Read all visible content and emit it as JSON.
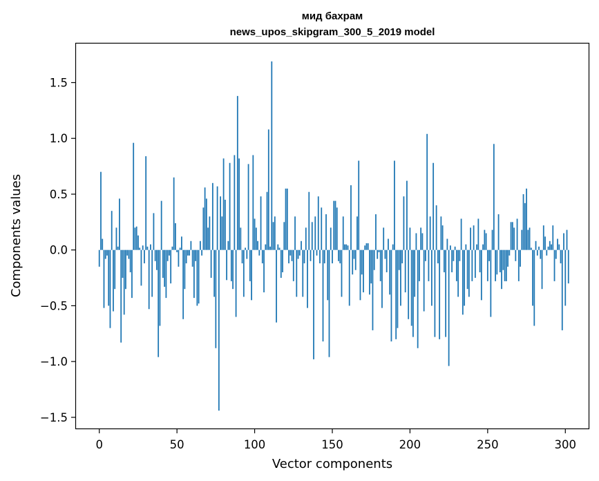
{
  "chart_data": {
    "type": "bar",
    "title_line1": "мид бахрам",
    "title_line2": "news_upos_skipgram_300_5_2019 model",
    "xlabel": "Vector components",
    "ylabel": "Components values",
    "xlim": [
      -15,
      315
    ],
    "ylim": [
      -1.6,
      1.85
    ],
    "xticks": [
      0,
      50,
      100,
      150,
      200,
      250,
      300
    ],
    "xtick_labels": [
      "0",
      "50",
      "100",
      "150",
      "200",
      "250",
      "300"
    ],
    "yticks": [
      -1.5,
      -1.0,
      -0.5,
      0.0,
      0.5,
      1.0,
      1.5
    ],
    "ytick_labels": [
      "−1.5",
      "−1.0",
      "−0.5",
      "0.0",
      "0.5",
      "1.0",
      "1.5"
    ],
    "bar_color": "#1f77b4",
    "grid": false,
    "values": [
      -0.15,
      0.7,
      0.1,
      -0.52,
      -0.08,
      -0.05,
      -0.5,
      -0.7,
      0.35,
      -0.55,
      -0.35,
      0.2,
      0.03,
      0.46,
      -0.83,
      -0.25,
      -0.58,
      -0.35,
      -0.05,
      -0.08,
      -0.2,
      -0.43,
      0.96,
      0.2,
      0.21,
      0.13,
      0.02,
      -0.32,
      0.04,
      -0.12,
      0.84,
      0.03,
      -0.53,
      0.05,
      -0.42,
      0.33,
      -0.1,
      -0.18,
      -0.96,
      -0.68,
      0.44,
      -0.25,
      -0.33,
      -0.43,
      -0.1,
      -0.05,
      -0.3,
      0.03,
      0.65,
      0.24,
      -0.02,
      -0.15,
      0.02,
      0.12,
      -0.62,
      -0.35,
      -0.12,
      -0.05,
      -0.05,
      0.08,
      -0.15,
      -0.43,
      -0.1,
      -0.5,
      -0.48,
      0.08,
      -0.05,
      0.38,
      0.56,
      0.46,
      0.2,
      0.3,
      -0.25,
      0.6,
      -0.42,
      -0.88,
      0.57,
      -1.44,
      0.48,
      0.3,
      0.82,
      0.45,
      -0.27,
      0.08,
      0.78,
      -0.28,
      -0.35,
      0.85,
      -0.6,
      1.38,
      0.82,
      0.2,
      -0.12,
      -0.42,
      0.02,
      -0.08,
      0.77,
      -0.28,
      -0.45,
      0.85,
      0.28,
      0.2,
      0.08,
      -0.05,
      0.48,
      -0.12,
      -0.38,
      0.05,
      0.52,
      1.08,
      0.03,
      1.69,
      0.25,
      0.3,
      -0.65,
      0.05,
      0.02,
      -0.25,
      -0.2,
      0.25,
      0.55,
      0.55,
      -0.12,
      -0.05,
      -0.1,
      -0.28,
      0.3,
      -0.42,
      -0.08,
      -0.05,
      0.08,
      -0.42,
      -0.12,
      0.2,
      -0.52,
      0.52,
      -0.1,
      0.25,
      -0.98,
      0.3,
      -0.05,
      0.48,
      -0.12,
      0.38,
      -0.82,
      -0.12,
      0.32,
      -0.45,
      -0.96,
      0.2,
      -0.12,
      0.44,
      0.44,
      0.38,
      -0.1,
      -0.12,
      -0.42,
      0.3,
      0.05,
      0.05,
      0.04,
      -0.5,
      0.58,
      -0.22,
      -0.08,
      -0.18,
      0.3,
      0.8,
      -0.45,
      -0.22,
      -0.38,
      0.04,
      0.06,
      0.06,
      -0.4,
      -0.3,
      -0.72,
      -0.18,
      0.32,
      -0.08,
      -0.02,
      -0.28,
      -0.52,
      0.2,
      -0.08,
      -0.2,
      0.1,
      -0.4,
      -0.82,
      0.05,
      0.8,
      -0.8,
      -0.7,
      -0.18,
      -0.5,
      -0.12,
      0.48,
      -0.38,
      0.62,
      -0.62,
      0.2,
      -0.68,
      -0.78,
      -0.42,
      0.15,
      -0.88,
      -0.28,
      0.2,
      0.15,
      -0.55,
      -0.1,
      1.04,
      -0.28,
      0.3,
      -0.5,
      0.78,
      -0.78,
      0.4,
      -0.12,
      -0.8,
      0.3,
      0.22,
      -0.2,
      -0.78,
      0.1,
      -1.04,
      0.04,
      -0.2,
      -0.1,
      0.03,
      -0.28,
      -0.42,
      -0.1,
      0.28,
      -0.58,
      -0.5,
      0.05,
      -0.35,
      -0.42,
      0.2,
      -0.28,
      0.22,
      -0.25,
      0.05,
      0.28,
      -0.2,
      -0.45,
      0.05,
      0.18,
      0.15,
      -0.28,
      -0.1,
      -0.6,
      0.18,
      0.95,
      -0.28,
      -0.22,
      0.32,
      -0.2,
      -0.35,
      -0.18,
      -0.28,
      -0.28,
      -0.15,
      -0.05,
      0.25,
      0.25,
      0.2,
      -0.1,
      0.28,
      -0.28,
      -0.15,
      0.18,
      0.5,
      0.42,
      0.55,
      0.18,
      0.2,
      0.02,
      -0.5,
      -0.68,
      0.08,
      -0.05,
      0.03,
      -0.08,
      -0.35,
      0.22,
      0.12,
      -0.05,
      0.03,
      0.08,
      0.05,
      0.22,
      -0.28,
      -0.08,
      0.1,
      0.05,
      -0.12,
      -0.72,
      0.15,
      -0.5,
      0.18,
      -0.3
    ]
  }
}
